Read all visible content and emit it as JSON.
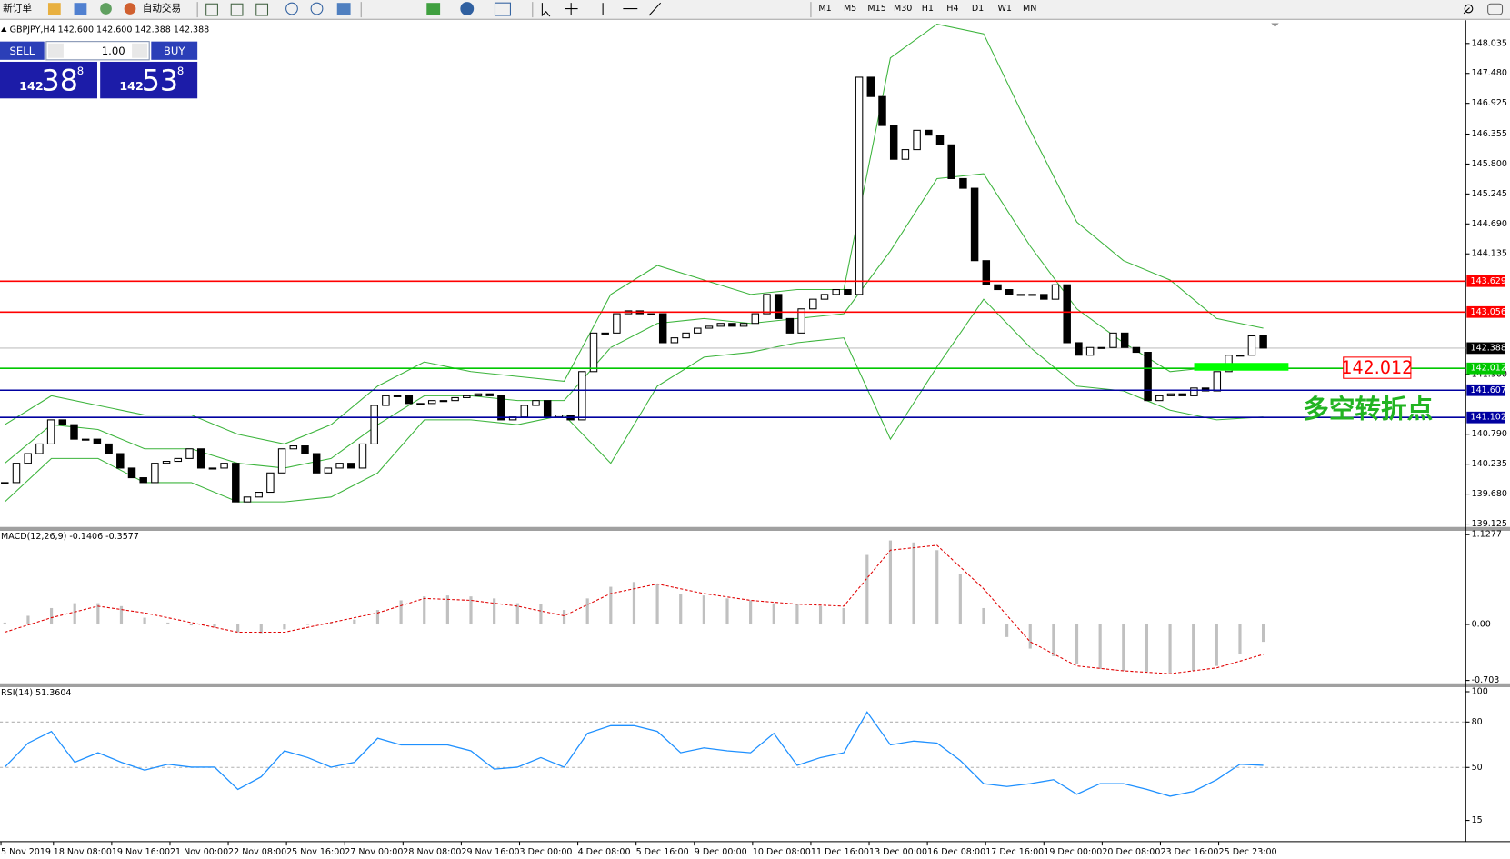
{
  "toolbar": {
    "new_order": "新订单",
    "auto_trading": "自动交易",
    "timeframes": [
      "M1",
      "M5",
      "M15",
      "M30",
      "H1",
      "H4",
      "D1",
      "W1",
      "MN"
    ]
  },
  "header": "GBPJPY,H4  142.600 142.600 142.388 142.388",
  "trade_panel": {
    "sell": "SELL",
    "buy": "BUY",
    "lots": "1.00",
    "bid": {
      "big": "142",
      "main": "38",
      "sup": "8"
    },
    "ask": {
      "big": "142",
      "main": "53",
      "sup": "8"
    }
  },
  "chart_data": [
    {
      "type": "candlestick",
      "values": [
        139.894,
        140.252,
        140.431,
        140.61,
        141.057,
        140.968,
        140.699,
        140.699,
        140.61,
        140.431,
        140.163,
        139.984,
        139.894,
        140.252,
        140.288,
        140.341,
        140.52,
        140.163,
        140.163,
        140.252,
        139.536,
        139.626,
        139.715,
        140.073,
        140.52,
        140.574,
        140.431,
        140.073,
        140.163,
        140.252,
        140.163,
        140.61,
        141.325,
        141.504,
        141.504,
        141.361,
        141.361,
        141.415,
        141.415,
        141.469,
        141.504,
        141.54,
        141.504,
        141.057,
        141.111,
        141.325,
        141.415,
        141.111,
        141.147,
        141.057,
        141.952,
        142.667,
        142.667,
        143.025,
        143.079,
        143.025,
        143.025,
        142.488,
        142.578,
        142.667,
        142.757,
        142.793,
        142.846,
        142.793,
        142.846,
        143.025,
        143.383,
        142.936,
        142.667,
        143.115,
        143.294,
        143.383,
        143.473,
        143.383,
        147.409,
        147.051,
        146.514,
        145.888,
        146.067,
        146.425,
        146.335,
        146.156,
        145.53,
        145.351,
        144.009,
        143.562,
        143.473,
        143.383,
        143.383,
        143.383,
        143.294,
        143.562,
        142.488,
        142.256,
        142.399,
        142.399,
        142.667,
        142.399,
        142.31,
        141.415,
        141.504,
        141.54,
        141.504,
        141.648,
        141.594,
        141.952,
        142.256,
        142.256,
        142.614,
        142.388
      ],
      "bands": {
        "upper": [
          140.968,
          141.504,
          141.325,
          141.147,
          141.147,
          140.789,
          140.61,
          140.968,
          141.683,
          142.131,
          141.952,
          141.862,
          141.773,
          143.383,
          143.92,
          143.651,
          143.383,
          143.473,
          143.473,
          147.767,
          148.393,
          148.214,
          146.425,
          144.725,
          144.009,
          143.651,
          142.936,
          142.757
        ],
        "middle": [
          140.252,
          140.968,
          140.878,
          140.52,
          140.52,
          140.252,
          140.163,
          140.341,
          140.968,
          141.504,
          141.504,
          141.415,
          141.415,
          142.399,
          142.846,
          142.936,
          142.846,
          142.936,
          143.025,
          144.188,
          145.53,
          145.62,
          144.278,
          143.115,
          142.488,
          141.952,
          142.041,
          142.077
        ],
        "lower": [
          139.536,
          140.341,
          140.341,
          139.894,
          139.894,
          139.536,
          139.536,
          139.626,
          140.073,
          141.057,
          141.057,
          140.968,
          141.147,
          140.252,
          141.683,
          142.22,
          142.31,
          142.488,
          142.578,
          140.699,
          142.041,
          143.294,
          142.399,
          141.683,
          141.594,
          141.236,
          141.057,
          141.111
        ]
      },
      "band_color": "#3cb43c",
      "bull_color": "#ffffff",
      "bear_color": "#000000",
      "ylim": [
        139.089,
        148.447
      ],
      "yticks": [
        148.035,
        {
          "value": 147.48,
          "label": "147.480"
        },
        146.925,
        146.355,
        {
          "value": 145.8,
          "label": "145.800"
        },
        145.245,
        {
          "value": 144.69,
          "label": "144.690"
        },
        144.135,
        {
          "value": 141.9,
          "label": "141.900"
        },
        {
          "value": 140.79,
          "label": "140.790"
        },
        140.235,
        {
          "value": 139.68,
          "label": "139.680"
        },
        139.125
      ],
      "current_price": 142.388,
      "levels": [
        {
          "value": 143.629,
          "color": "#ff0000"
        },
        {
          "value": 143.056,
          "color": "#ff0000"
        },
        {
          "value": 142.012,
          "color": "#00c800"
        },
        {
          "value": 141.607,
          "color": "#0000a0"
        },
        {
          "value": 141.102,
          "color": "#0000a0"
        }
      ],
      "x_labels": [
        "5 Nov 2019",
        "18 Nov 08:00",
        "19 Nov 16:00",
        "21 Nov 00:00",
        "22 Nov 08:00",
        "25 Nov 16:00",
        "27 Nov 00:00",
        "28 Nov 08:00",
        "29 Nov 16:00",
        "3 Dec 00:00",
        "4 Dec 08:00",
        "5 Dec 16:00",
        "9 Dec 00:00",
        "10 Dec 08:00",
        "11 Dec 16:00",
        "13 Dec 00:00",
        "16 Dec 08:00",
        "17 Dec 16:00",
        "19 Dec 00:00",
        "20 Dec 08:00",
        "23 Dec 16:00",
        "25 Dec 23:00"
      ],
      "annotations": {
        "price_box": "142.012",
        "text": "多空转折点"
      }
    },
    {
      "type": "macd",
      "label": "MACD(12,26,9) -0.1406 -0.3577",
      "values": [
        0.024,
        0.109,
        0.206,
        0.267,
        0.267,
        0.23,
        0.085,
        0.024,
        -0.012,
        -0.036,
        -0.097,
        -0.109,
        -0.061,
        0.0,
        0.024,
        0.061,
        0.182,
        0.303,
        0.352,
        0.364,
        0.352,
        0.327,
        0.267,
        0.255,
        0.182,
        0.327,
        0.473,
        0.533,
        0.509,
        0.388,
        0.364,
        0.327,
        0.303,
        0.267,
        0.255,
        0.23,
        0.206,
        0.873,
        1.055,
        1.03,
        0.933,
        0.63,
        0.206,
        -0.158,
        -0.303,
        -0.4,
        -0.497,
        -0.558,
        -0.582,
        -0.594,
        -0.606,
        -0.582,
        -0.521,
        -0.376,
        -0.218
      ],
      "signal": [
        -0.097,
        0.085,
        0.23,
        0.145,
        0.024,
        -0.097,
        -0.097,
        0.024,
        0.145,
        0.327,
        0.303,
        0.23,
        0.109,
        0.388,
        0.509,
        0.388,
        0.303,
        0.255,
        0.23,
        0.933,
        0.994,
        0.448,
        -0.218,
        -0.521,
        -0.582,
        -0.618,
        -0.545,
        -0.376
      ],
      "color": "#c0c0c0",
      "signal_color": "#e00000",
      "ylim": [
        -0.739,
        1.176
      ],
      "yticks": [
        1.1277,
        {
          "value": 0,
          "label": "0.00"
        },
        -0.703
      ]
    },
    {
      "type": "line",
      "label": "RSI(14) 51.3604",
      "values": [
        50.2,
        66.1,
        73.8,
        53.4,
        59.7,
        53.4,
        48.2,
        52.1,
        50.2,
        50.2,
        35.5,
        43.8,
        61.0,
        56.5,
        50.2,
        53.4,
        69.3,
        64.9,
        64.9,
        64.9,
        61.0,
        48.9,
        50.2,
        56.5,
        50.2,
        72.5,
        77.6,
        77.6,
        73.8,
        59.7,
        62.9,
        61.0,
        59.7,
        72.5,
        51.4,
        56.5,
        59.7,
        86.6,
        64.9,
        67.4,
        66.1,
        54.6,
        39.3,
        37.4,
        39.3,
        41.9,
        32.3,
        39.3,
        39.3,
        35.5,
        31.0,
        34.2,
        41.9,
        52.1,
        51.4
      ],
      "color": "#1e90ff",
      "ylim": [
        1,
        103
      ],
      "yticks": [
        100,
        80,
        50,
        15
      ],
      "levels": [
        80,
        50
      ]
    }
  ]
}
